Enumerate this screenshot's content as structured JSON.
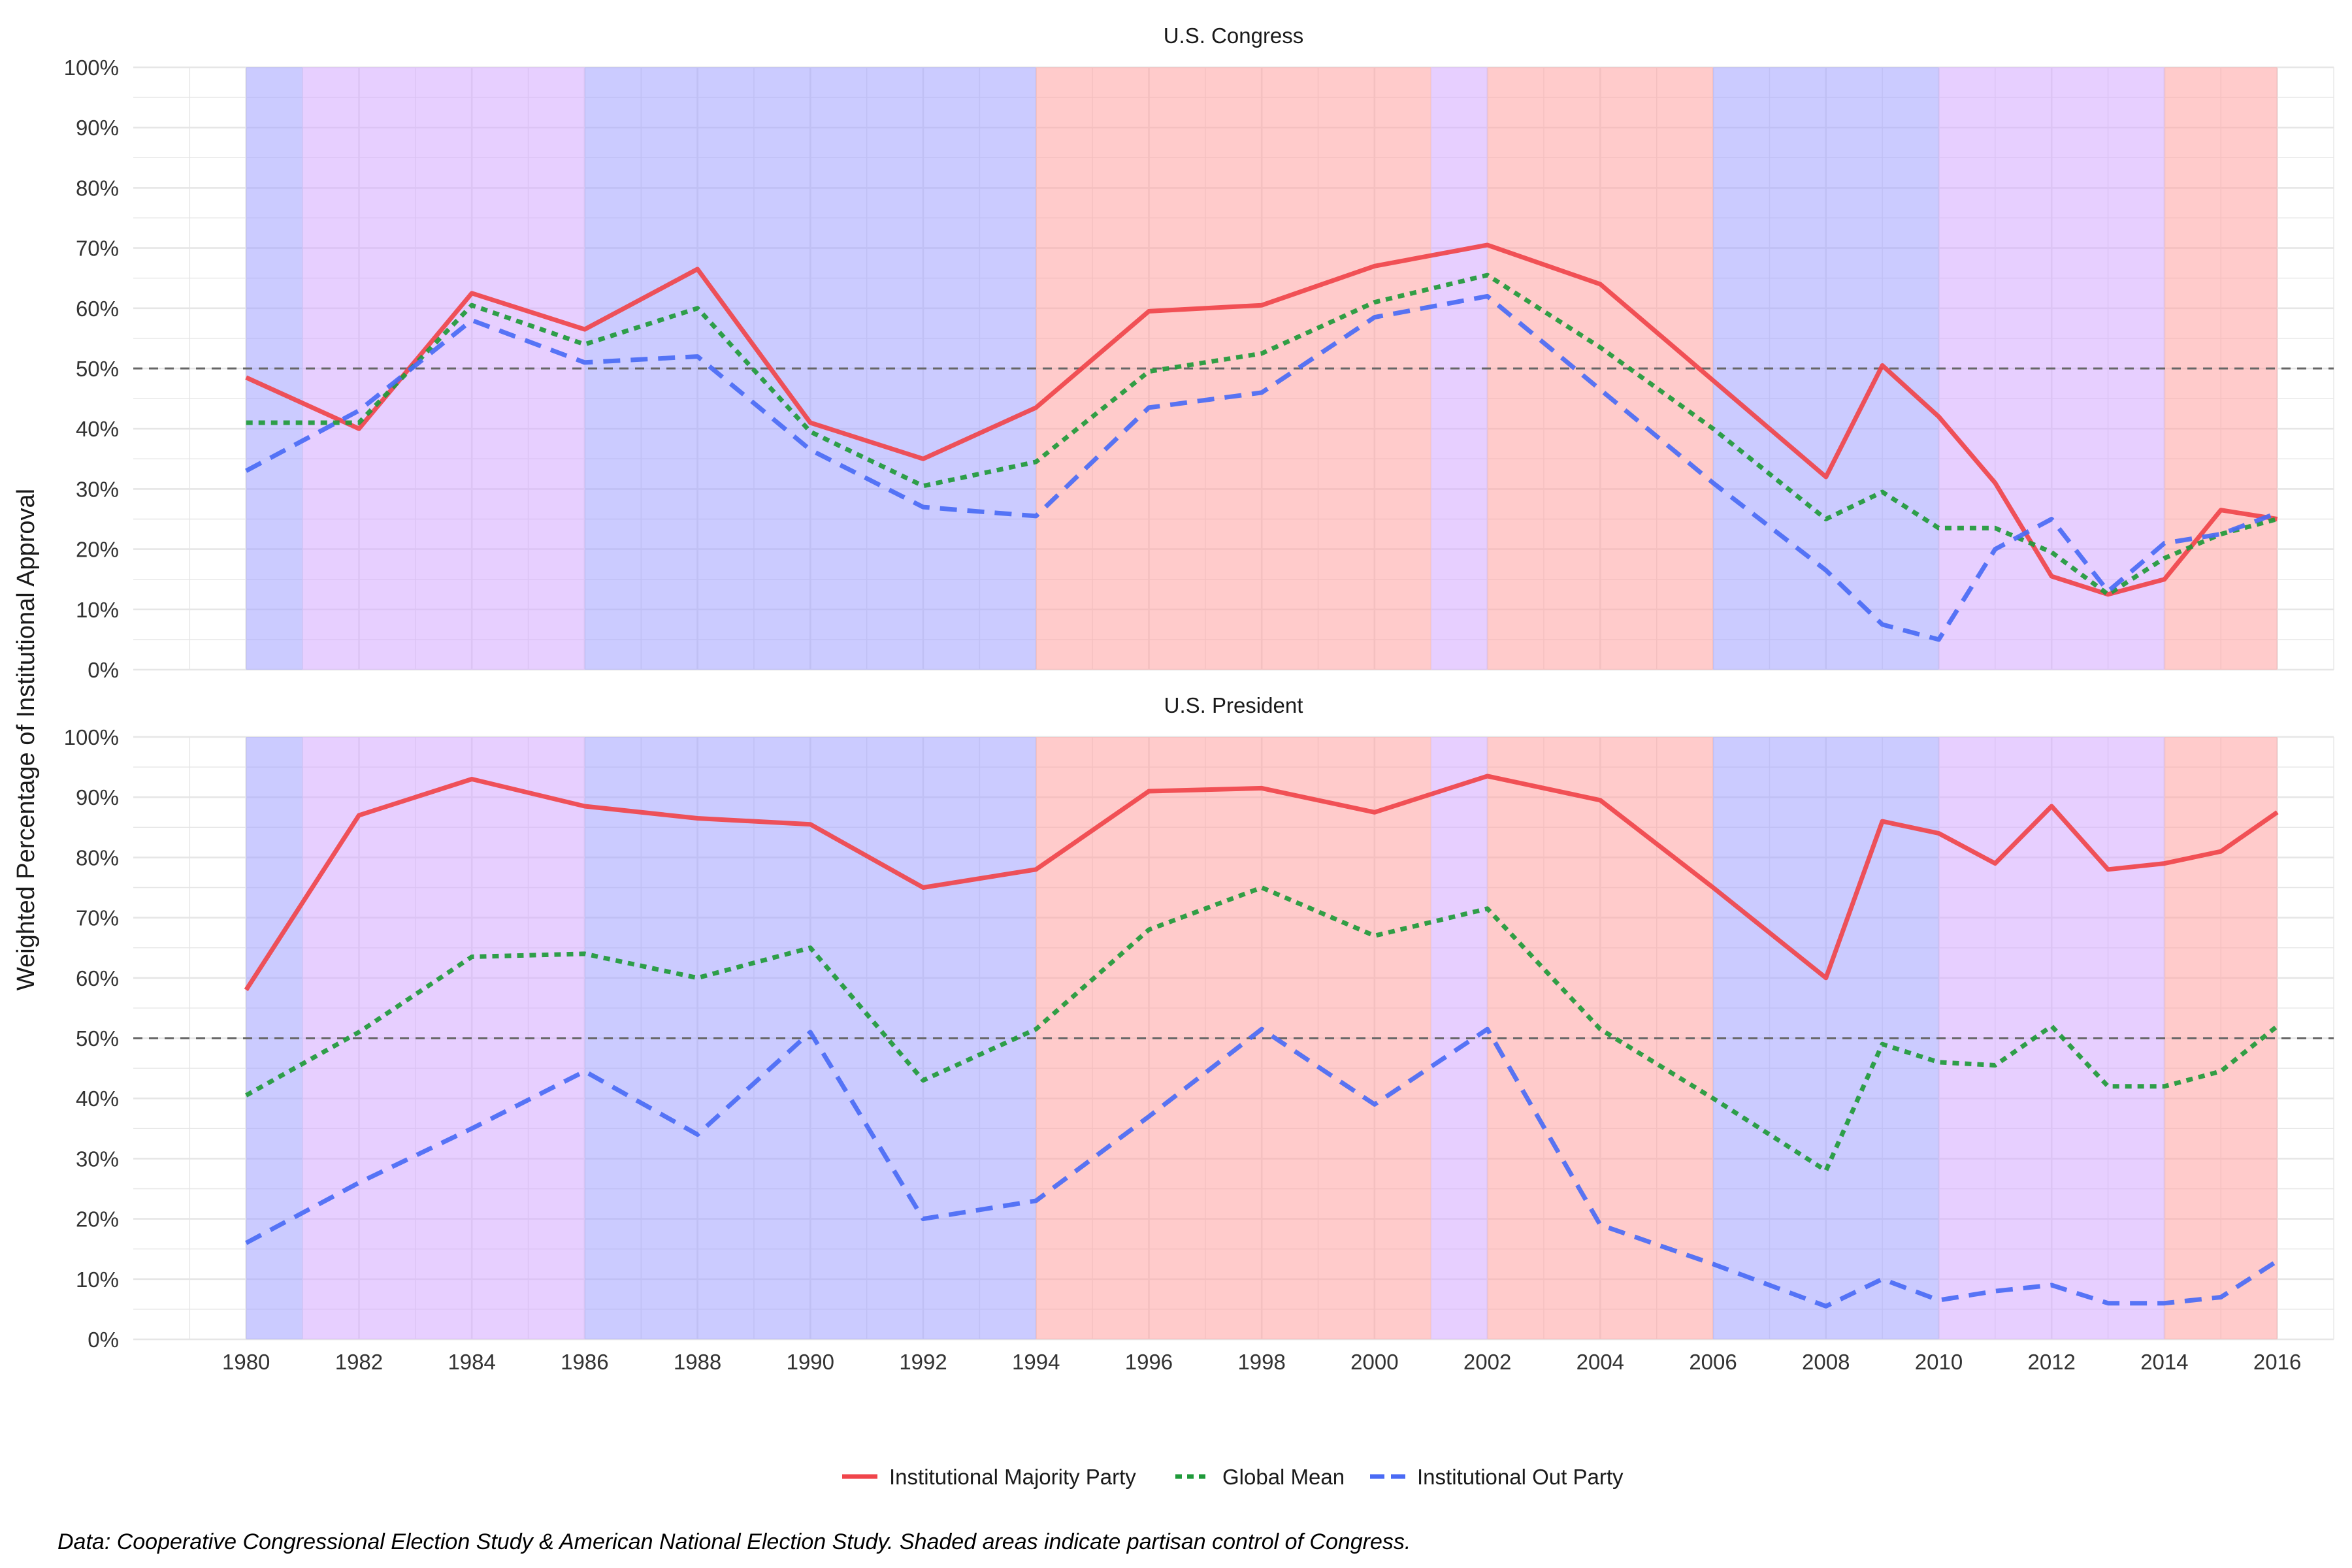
{
  "figure": {
    "ylabel": "Weighted Percentage of Institutional Approval",
    "caption": "Data: Cooperative Congressional Election Study & American National Election Study. Shaded areas indicate partisan control of Congress.",
    "legend_position": "bottom",
    "reference_line": 50,
    "x_ticks": [
      1980,
      1982,
      1984,
      1986,
      1988,
      1990,
      1992,
      1994,
      1996,
      1998,
      2000,
      2002,
      2004,
      2006,
      2008,
      2010,
      2012,
      2014,
      2016
    ],
    "y_ticks": [
      "0%",
      "10%",
      "20%",
      "30%",
      "40%",
      "50%",
      "60%",
      "70%",
      "80%",
      "90%",
      "100%"
    ],
    "xlim": [
      1978,
      2017
    ],
    "ylim": [
      0,
      100
    ],
    "colors": {
      "majority": "#f0454b",
      "global": "#1f9a3a",
      "out": "#4a6bf5",
      "band_blue": "#a0a0ff",
      "band_purple": "#d4a8ff",
      "band_red": "#ffa0a0",
      "grid": "#e6e6e6",
      "refline": "#666666"
    },
    "bands": [
      {
        "from": 1980,
        "to": 1981,
        "color": "band_blue"
      },
      {
        "from": 1981,
        "to": 1986,
        "color": "band_purple"
      },
      {
        "from": 1986,
        "to": 1994,
        "color": "band_blue"
      },
      {
        "from": 1994,
        "to": 2001,
        "color": "band_red"
      },
      {
        "from": 2001,
        "to": 2002,
        "color": "band_purple"
      },
      {
        "from": 2002,
        "to": 2006,
        "color": "band_red"
      },
      {
        "from": 2006,
        "to": 2010,
        "color": "band_blue"
      },
      {
        "from": 2010,
        "to": 2014,
        "color": "band_purple"
      },
      {
        "from": 2014,
        "to": 2016,
        "color": "band_red"
      }
    ]
  },
  "legend": [
    {
      "key": "majority",
      "label": "Institutional Majority Party",
      "dash": "solid"
    },
    {
      "key": "global",
      "label": "Global Mean",
      "dash": "dotted"
    },
    {
      "key": "out",
      "label": "Institutional Out Party",
      "dash": "dashed"
    }
  ],
  "chart_data": [
    {
      "type": "line",
      "title": "U.S. Congress",
      "series": [
        {
          "key": "majority",
          "name": "Institutional Majority Party",
          "x": [
            1980,
            1982,
            1984,
            1986,
            1988,
            1990,
            1992,
            1994,
            1996,
            1998,
            2000,
            2002,
            2004,
            2006,
            2008,
            2009,
            2010,
            2011,
            2012,
            2013,
            2014,
            2015,
            2016
          ],
          "y": [
            48.5,
            40,
            62.5,
            56.5,
            66.5,
            41,
            35,
            43.5,
            59.5,
            60.5,
            67,
            70.5,
            64,
            48,
            32,
            50.5,
            42,
            31,
            15.5,
            12.5,
            15,
            26.5,
            25
          ]
        },
        {
          "key": "global",
          "name": "Global Mean",
          "x": [
            1980,
            1982,
            1984,
            1986,
            1988,
            1990,
            1992,
            1994,
            1996,
            1998,
            2000,
            2002,
            2004,
            2006,
            2008,
            2009,
            2010,
            2011,
            2012,
            2013,
            2014,
            2015,
            2016
          ],
          "y": [
            41,
            41,
            60.5,
            54,
            60,
            39.5,
            30.5,
            34.5,
            49.5,
            52.5,
            61,
            65.5,
            53.5,
            40,
            25,
            29.5,
            23.5,
            23.5,
            19.5,
            12.5,
            18.5,
            22.5,
            25
          ]
        },
        {
          "key": "out",
          "name": "Institutional Out Party",
          "x": [
            1980,
            1982,
            1984,
            1986,
            1988,
            1990,
            1992,
            1994,
            1996,
            1998,
            2000,
            2002,
            2004,
            2006,
            2008,
            2009,
            2010,
            2011,
            2012,
            2013,
            2014,
            2015,
            2016
          ],
          "y": [
            33,
            43,
            58,
            51,
            52,
            36.5,
            27,
            25.5,
            43.5,
            46,
            58.5,
            62,
            46.5,
            31,
            16.5,
            7.5,
            5,
            20,
            25,
            13,
            21,
            22.5,
            26
          ]
        }
      ]
    },
    {
      "type": "line",
      "title": "U.S. President",
      "series": [
        {
          "key": "majority",
          "name": "Institutional Majority Party",
          "x": [
            1980,
            1982,
            1984,
            1986,
            1988,
            1990,
            1992,
            1994,
            1996,
            1998,
            2000,
            2002,
            2004,
            2006,
            2008,
            2009,
            2010,
            2011,
            2012,
            2013,
            2014,
            2015,
            2016
          ],
          "y": [
            58,
            87,
            93,
            88.5,
            86.5,
            85.5,
            75,
            78,
            91,
            91.5,
            87.5,
            93.5,
            89.5,
            75,
            60,
            86,
            84,
            79,
            88.5,
            78,
            79,
            81,
            87.5
          ]
        },
        {
          "key": "global",
          "name": "Global Mean",
          "x": [
            1980,
            1982,
            1984,
            1986,
            1988,
            1990,
            1992,
            1994,
            1996,
            1998,
            2000,
            2002,
            2004,
            2006,
            2008,
            2009,
            2010,
            2011,
            2012,
            2013,
            2014,
            2015,
            2016
          ],
          "y": [
            40.5,
            51,
            63.5,
            64,
            60,
            65,
            43,
            51.5,
            68,
            75,
            67,
            71.5,
            51.5,
            40,
            28,
            49,
            46,
            45.5,
            52,
            42,
            42,
            44.5,
            52
          ]
        },
        {
          "key": "out",
          "name": "Institutional Out Party",
          "x": [
            1980,
            1982,
            1984,
            1986,
            1988,
            1990,
            1992,
            1994,
            1996,
            1998,
            2000,
            2002,
            2004,
            2006,
            2008,
            2009,
            2010,
            2011,
            2012,
            2013,
            2014,
            2015,
            2016
          ],
          "y": [
            16,
            26,
            35,
            44.5,
            34,
            51,
            20,
            23,
            37,
            51.5,
            39,
            51.5,
            19,
            12.5,
            5.5,
            10,
            6.5,
            8,
            9,
            6,
            6,
            7,
            13
          ]
        }
      ]
    }
  ]
}
